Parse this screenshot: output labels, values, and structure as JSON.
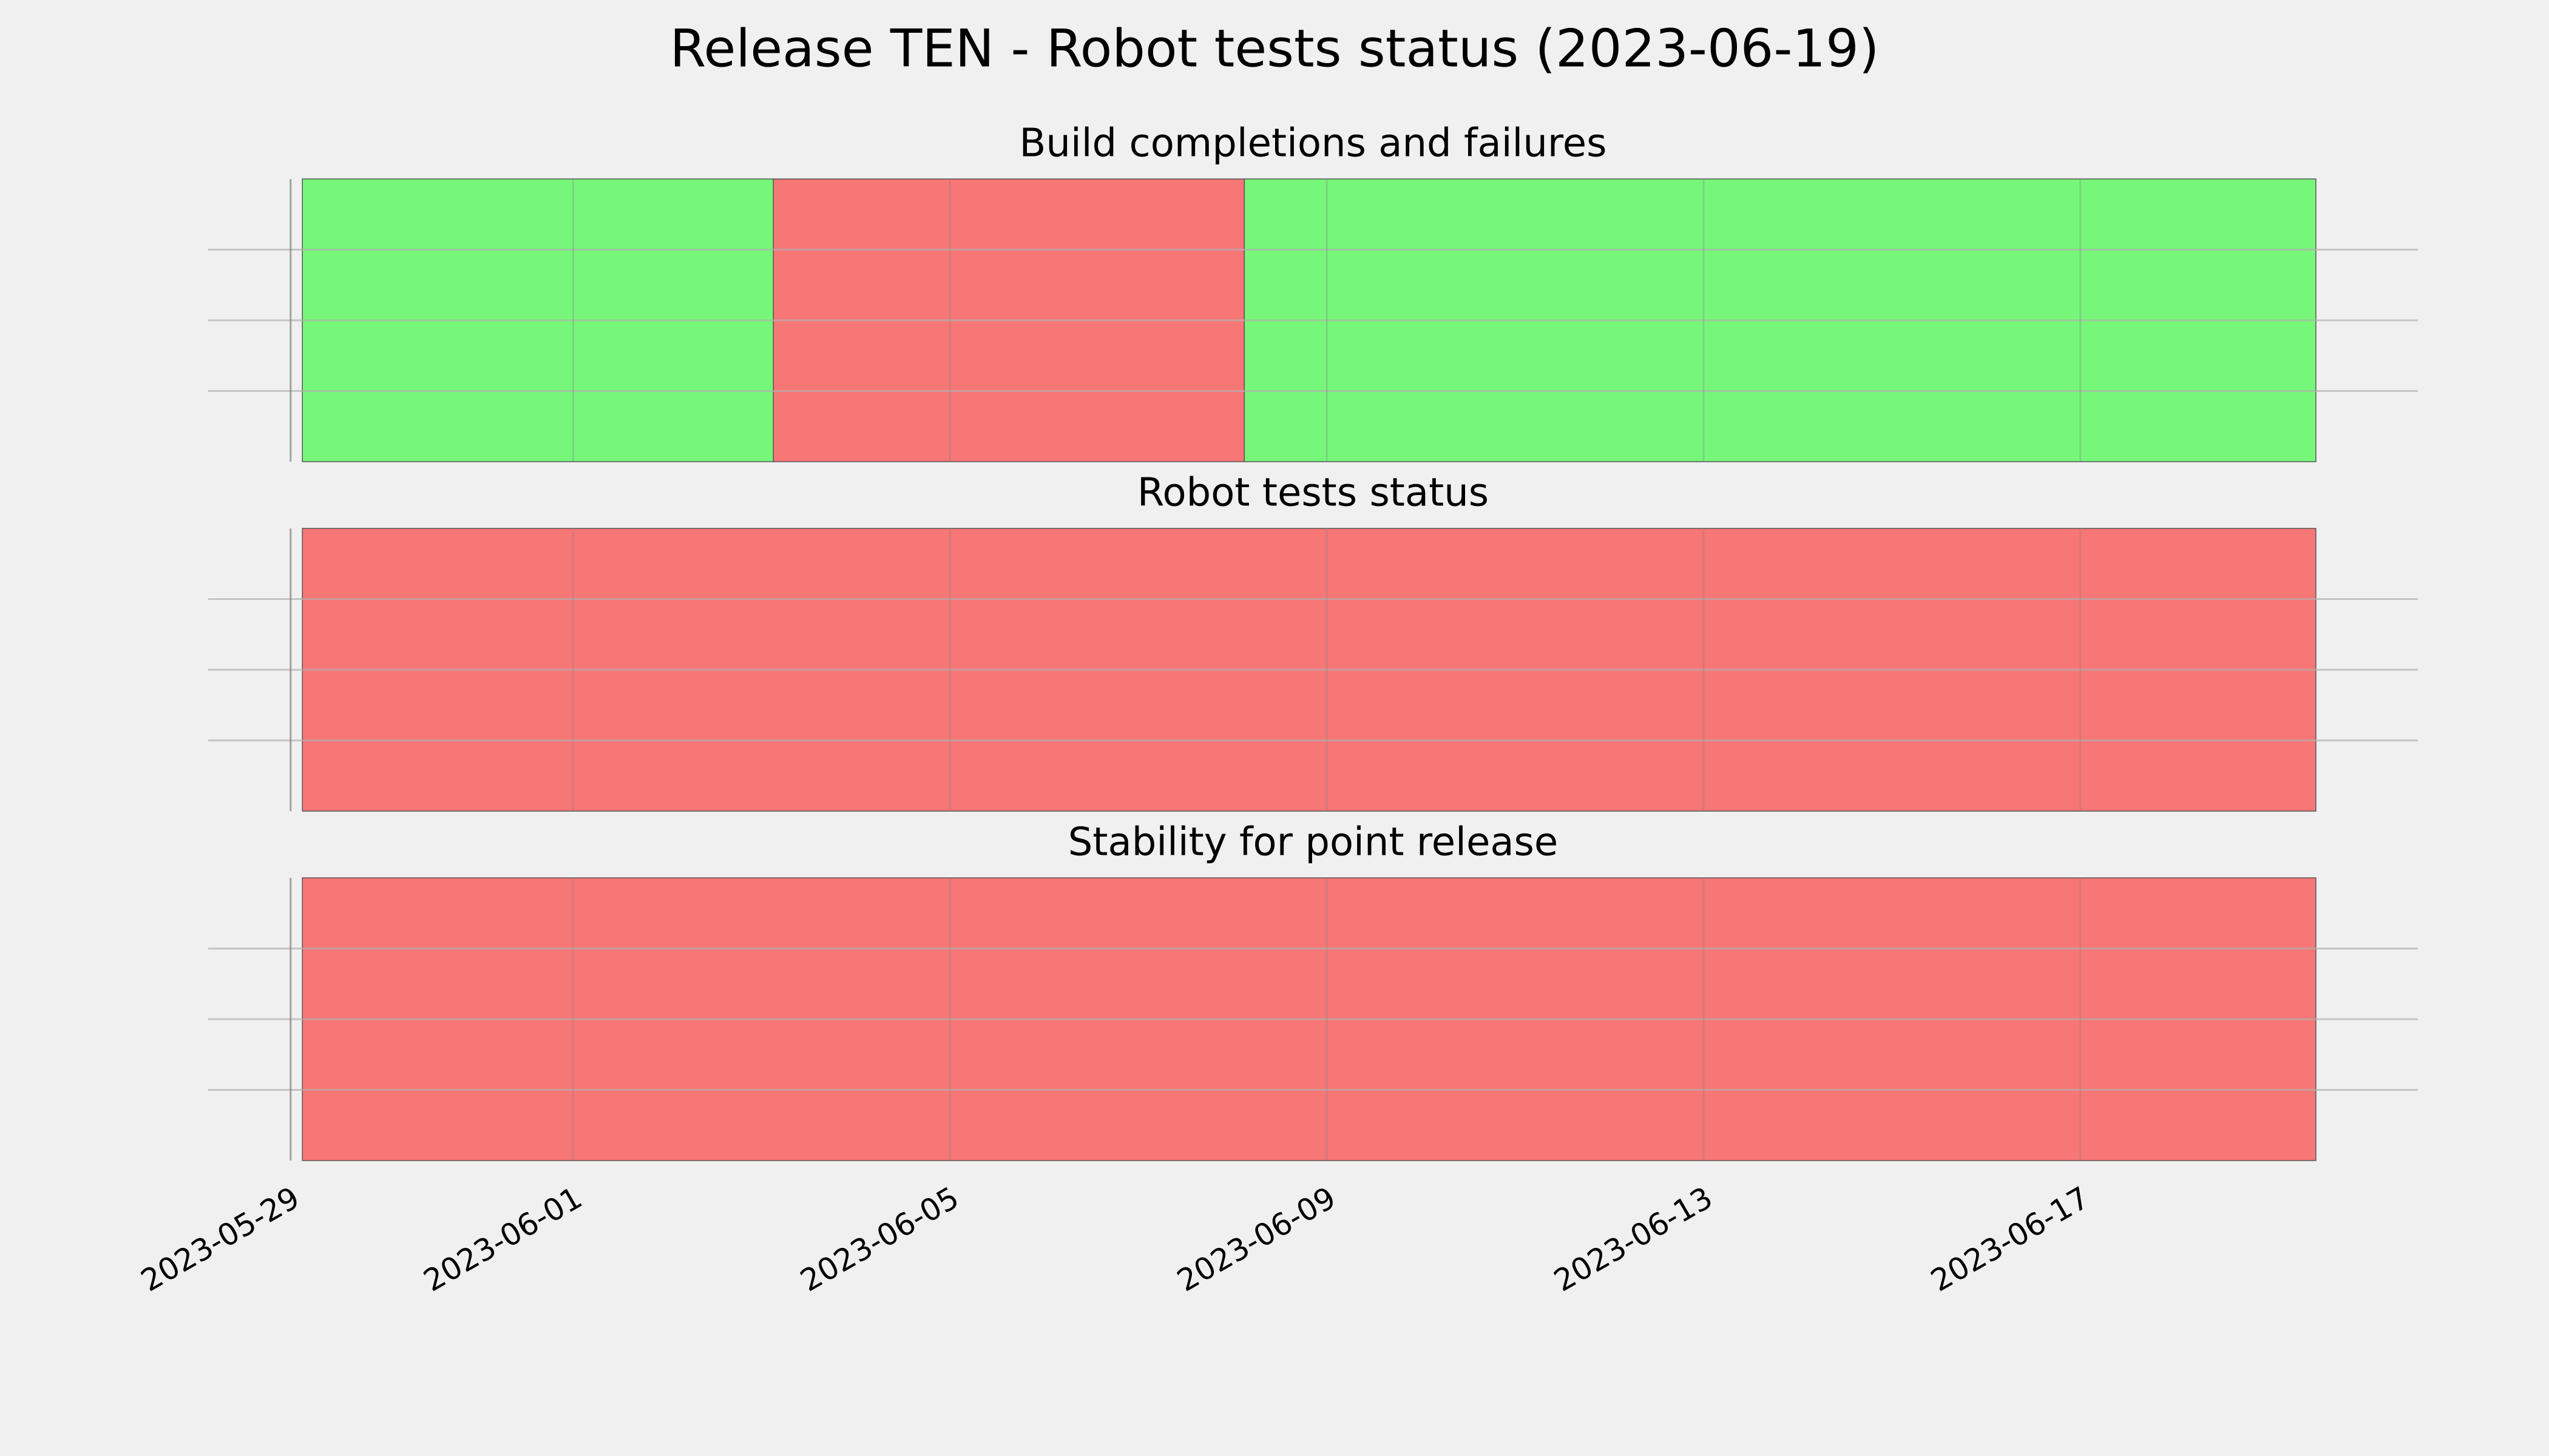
{
  "title": "Release TEN - Robot tests status (2023-06-19)",
  "chart_data": [
    {
      "type": "timeline",
      "title": "Build completions and failures",
      "segments": [
        {
          "start": "2023-05-29T03:00",
          "end": "2023-06-03T03:00",
          "color": "#77f77a"
        },
        {
          "start": "2023-06-03T03:00",
          "end": "2023-06-08T03:00",
          "color": "#f77676"
        },
        {
          "start": "2023-06-08T03:00",
          "end": "2023-06-19T12:00",
          "color": "#77f77a"
        }
      ],
      "xlim": [
        "2023-05-28T03:00",
        "2023-06-20T14:00"
      ],
      "xticks": [
        "2023-05-29",
        "2023-06-01",
        "2023-06-05",
        "2023-06-09",
        "2023-06-13",
        "2023-06-17"
      ],
      "ylim": [
        0,
        1
      ],
      "yticks": [
        0.25,
        0.5,
        0.75
      ],
      "grid": true
    },
    {
      "type": "timeline",
      "title": "Robot tests status",
      "segments": [
        {
          "start": "2023-05-29T03:00",
          "end": "2023-06-19T12:00",
          "color": "#f77676"
        }
      ],
      "xlim": [
        "2023-05-28T03:00",
        "2023-06-20T14:00"
      ],
      "xticks": [
        "2023-05-29",
        "2023-06-01",
        "2023-06-05",
        "2023-06-09",
        "2023-06-13",
        "2023-06-17"
      ],
      "ylim": [
        0,
        1
      ],
      "yticks": [
        0.25,
        0.5,
        0.75
      ],
      "grid": true
    },
    {
      "type": "timeline",
      "title": "Stability for point release",
      "segments": [
        {
          "start": "2023-05-29T03:00",
          "end": "2023-06-19T12:00",
          "color": "#f77676"
        }
      ],
      "xlim": [
        "2023-05-28T03:00",
        "2023-06-20T14:00"
      ],
      "xticks": [
        "2023-05-29",
        "2023-06-01",
        "2023-06-05",
        "2023-06-09",
        "2023-06-13",
        "2023-06-17"
      ],
      "ylim": [
        0,
        1
      ],
      "yticks": [
        0.25,
        0.5,
        0.75
      ],
      "grid": true
    }
  ]
}
